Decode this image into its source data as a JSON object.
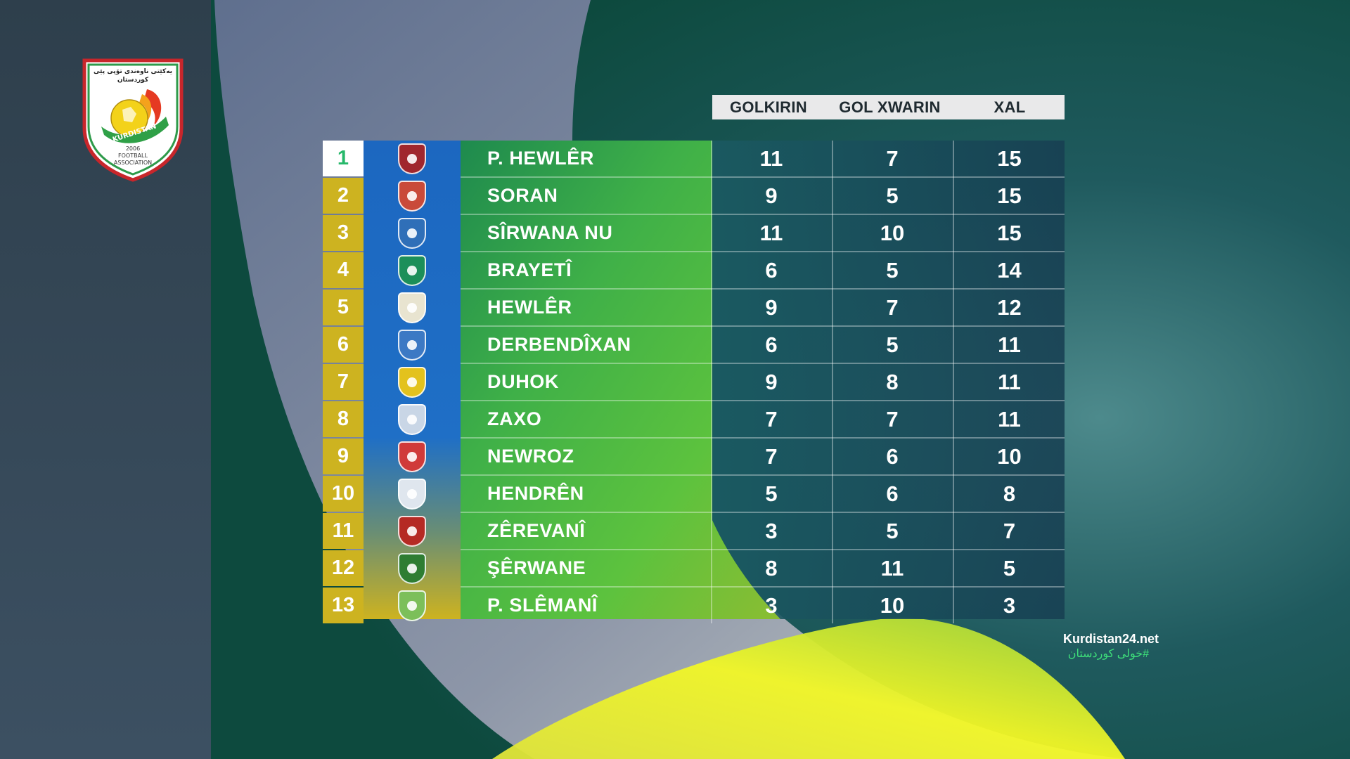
{
  "logo": {
    "top_text": "یەکێتی ناوەندی تۆپی پێی کوردستان",
    "ribbon_text": "KURDISTAN",
    "year": "2006",
    "bottom_text_1": "FOOTBALL",
    "bottom_text_2": "ASSOCIATION"
  },
  "columns": [
    "GOLKIRIN",
    "GOL XWARIN",
    "XAL"
  ],
  "teams": [
    {
      "rank": "1",
      "name": "P. HEWLÊR",
      "scored": "11",
      "conceded": "7",
      "points": "15",
      "crest_color": "#a0262d"
    },
    {
      "rank": "2",
      "name": "SORAN",
      "scored": "9",
      "conceded": "5",
      "points": "15",
      "crest_color": "#c94a3a"
    },
    {
      "rank": "3",
      "name": "SÎRWANA NU",
      "scored": "11",
      "conceded": "10",
      "points": "15",
      "crest_color": "#2f6fb8"
    },
    {
      "rank": "4",
      "name": "BRAYETÎ",
      "scored": "6",
      "conceded": "5",
      "points": "14",
      "crest_color": "#1c8f5a"
    },
    {
      "rank": "5",
      "name": "HEWLÊR",
      "scored": "9",
      "conceded": "7",
      "points": "12",
      "crest_color": "#e8e4d0"
    },
    {
      "rank": "6",
      "name": "DERBENDÎXAN",
      "scored": "6",
      "conceded": "5",
      "points": "11",
      "crest_color": "#3c79c4"
    },
    {
      "rank": "7",
      "name": "DUHOK",
      "scored": "9",
      "conceded": "8",
      "points": "11",
      "crest_color": "#e3c21d"
    },
    {
      "rank": "8",
      "name": "ZAXO",
      "scored": "7",
      "conceded": "7",
      "points": "11",
      "crest_color": "#c9d6e6"
    },
    {
      "rank": "9",
      "name": "NEWROZ",
      "scored": "7",
      "conceded": "6",
      "points": "10",
      "crest_color": "#d03a3a"
    },
    {
      "rank": "10",
      "name": "HENDRÊN",
      "scored": "5",
      "conceded": "6",
      "points": "8",
      "crest_color": "#dfe6ee"
    },
    {
      "rank": "11",
      "name": "ZÊREVANÎ",
      "scored": "3",
      "conceded": "5",
      "points": "7",
      "crest_color": "#b52a24"
    },
    {
      "rank": "12",
      "name": "ŞÊRWANE",
      "scored": "8",
      "conceded": "11",
      "points": "5",
      "crest_color": "#2e7d32"
    },
    {
      "rank": "13",
      "name": "P. SLÊMANÎ",
      "scored": "3",
      "conceded": "10",
      "points": "3",
      "crest_color": "#7cbf5a"
    }
  ],
  "footer": {
    "site": "Kurdistan24.net",
    "hashtag": "#خولی کوردستان"
  },
  "colors": {
    "rank_gold": "#cdb320",
    "rank_first_text": "#26b86a",
    "blue_band": "#1e6fc2",
    "green_band": "#4fc243",
    "dark_teal": "#1b4a5a"
  }
}
